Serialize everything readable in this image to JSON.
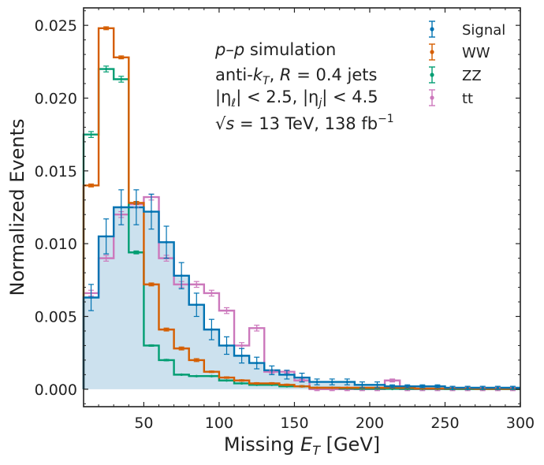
{
  "chart_data": {
    "type": "histogram",
    "xlabel": "Missing E_T [GeV]",
    "xlabel_main": "Missing ",
    "xlabel_var": "E",
    "xlabel_sub": "T",
    "xlabel_unit": " [GeV]",
    "ylabel": "Normalized Events",
    "xlim": [
      10,
      300
    ],
    "ylim": [
      -0.0012,
      0.0262
    ],
    "xticks": [
      50,
      100,
      150,
      200,
      250,
      300
    ],
    "xtick_labels": [
      "50",
      "100",
      "150",
      "200",
      "250",
      "300"
    ],
    "yticks": [
      0,
      0.005,
      0.01,
      0.015,
      0.02,
      0.025
    ],
    "ytick_labels": [
      "0.000",
      "0.005",
      "0.010",
      "0.015",
      "0.020",
      "0.025"
    ],
    "grid": false,
    "legend_position": "top-right",
    "bin_edges": [
      10,
      20,
      30,
      40,
      50,
      60,
      70,
      80,
      90,
      100,
      110,
      120,
      130,
      140,
      150,
      160,
      170,
      180,
      190,
      200,
      210,
      220,
      230,
      240,
      250,
      260,
      270,
      280,
      290,
      300
    ],
    "series": [
      {
        "name": "Signal",
        "color": "#0173b2",
        "filled": true,
        "fill_color": "#cce1ee",
        "values": [
          0.0063,
          0.0105,
          0.0125,
          0.0125,
          0.0122,
          0.0101,
          0.0078,
          0.0058,
          0.0041,
          0.003,
          0.0023,
          0.0018,
          0.0013,
          0.001,
          0.0008,
          0.0005,
          0.0005,
          0.0005,
          0.0003,
          0.0003,
          0.0002,
          0.0002,
          0.0002,
          0.0002,
          0.0001,
          0.0001,
          0.0001,
          0.0001,
          0.0001
        ],
        "errors": [
          0.0009,
          0.0012,
          0.0012,
          0.0012,
          0.0012,
          0.0011,
          0.0009,
          0.0008,
          0.0007,
          0.0006,
          0.0005,
          0.0004,
          0.0003,
          0.0003,
          0.0003,
          0.0002,
          0.0002,
          0.0002,
          0.0002,
          0.0002,
          0.0001,
          0.0001,
          0.0001,
          0.0001,
          0.0001,
          0.0001,
          0.0001,
          0.0001,
          0.0001
        ]
      },
      {
        "name": "WW",
        "color": "#d55e00",
        "filled": false,
        "values": [
          0.014,
          0.0248,
          0.0228,
          0.0128,
          0.0072,
          0.0041,
          0.0028,
          0.002,
          0.0012,
          0.0008,
          0.0006,
          0.0004,
          0.0004,
          0.0003,
          0.0002,
          0.0001,
          0.0001,
          0.0001,
          0.0001,
          0.0001,
          0.0001,
          0.0001,
          5e-05,
          5e-05,
          5e-05,
          5e-05,
          3e-05,
          3e-05,
          3e-05
        ],
        "errors": [
          0.0001,
          0.0001,
          0.0001,
          0.0001,
          0.0001,
          0.0001,
          0.0001,
          0.0001,
          5e-05,
          5e-05,
          5e-05,
          5e-05,
          5e-05,
          5e-05,
          5e-05,
          3e-05,
          3e-05,
          3e-05,
          3e-05,
          3e-05,
          3e-05,
          3e-05,
          2e-05,
          2e-05,
          2e-05,
          2e-05,
          2e-05,
          2e-05,
          2e-05
        ]
      },
      {
        "name": "ZZ",
        "color": "#029e73",
        "filled": false,
        "values": [
          0.0175,
          0.022,
          0.0213,
          0.0094,
          0.003,
          0.002,
          0.001,
          0.0009,
          0.0009,
          0.0006,
          0.0004,
          0.0003,
          0.0003,
          0.0002,
          0.0002,
          0.0001,
          0.0001,
          5e-05,
          3e-05,
          3e-05,
          2e-05,
          2e-05,
          2e-05,
          2e-05,
          1e-05,
          1e-05,
          1e-05,
          1e-05,
          1e-05
        ],
        "errors": [
          0.0002,
          0.0002,
          0.0002,
          0.0001,
          5e-05,
          5e-05,
          3e-05,
          3e-05,
          3e-05,
          2e-05,
          2e-05,
          2e-05,
          2e-05,
          1e-05,
          1e-05,
          1e-05,
          1e-05,
          1e-05,
          1e-05,
          1e-05,
          1e-05,
          1e-05,
          1e-05,
          1e-05,
          1e-05,
          1e-05,
          1e-05,
          1e-05,
          1e-05
        ]
      },
      {
        "name": "tt",
        "color": "#cc78bc",
        "filled": false,
        "values": [
          0.0066,
          0.009,
          0.012,
          0.0127,
          0.0132,
          0.009,
          0.0072,
          0.0072,
          0.0066,
          0.0054,
          0.003,
          0.0042,
          0.0012,
          0.0012,
          0.0006,
          0.0,
          0.0,
          0.0,
          0.0,
          0.0,
          0.0006,
          0.0,
          0.0,
          0.0,
          0.0,
          0.0,
          0.0,
          0.0,
          0.0
        ],
        "errors": [
          0.0002,
          0.0002,
          0.0002,
          0.0002,
          0.0002,
          0.0002,
          0.0002,
          0.0002,
          0.0002,
          0.0002,
          0.0002,
          0.0002,
          0.0001,
          0.0001,
          0.0001,
          0.0001,
          0.0001,
          0.0001,
          0.0001,
          0.0001,
          0.0001,
          0.0001,
          0.0001,
          0.0001,
          0.0001,
          0.0001,
          0.0001,
          0.0001,
          0.0001
        ]
      }
    ],
    "annotations": {
      "line1_var": "p",
      "line1_dash": "–",
      "line1_var2": "p",
      "line1_text": " simulation",
      "line2_text": "anti-",
      "line2_var": "k",
      "line2_sub": "T",
      "line2_text2": ", ",
      "line2_var2": "R",
      "line2_text3": " = 0.4 jets",
      "line3_text": "|η",
      "line3_sub": "ℓ",
      "line3_text2": "| < 2.5, |η",
      "line3_sub2": "j",
      "line3_text3": "| < 4.5",
      "line4_sqrt": "√",
      "line4_var": "s",
      "line4_text": " = 13 TeV, 138 fb",
      "line4_sup": "−1"
    }
  }
}
